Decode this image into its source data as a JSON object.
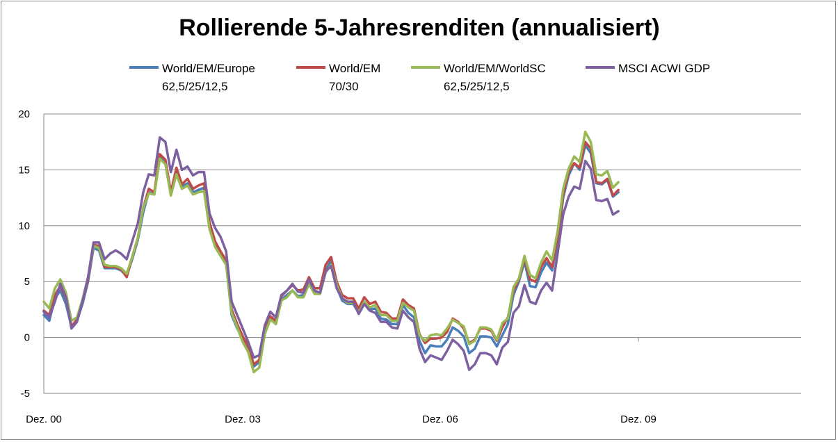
{
  "chart_data": {
    "type": "line",
    "title": "Rollierende 5-Jahresrenditen (annualisiert)",
    "xlabel": "",
    "ylabel": "",
    "ylim": [
      -5,
      20
    ],
    "yticks": [
      "-5",
      "0",
      "5",
      "10",
      "15",
      "20"
    ],
    "xticks": [
      "Dez. 00",
      "Dez. 03",
      "Dez. 06",
      "Dez. 09"
    ],
    "grid": "horizontal",
    "legend_position": "top",
    "x_start": "Dez. 00",
    "x_step": "monthly",
    "series": [
      {
        "name_lines": [
          "World/EM/Europe",
          "62,5/25/12,5"
        ],
        "color": "#4a7ebb",
        "values": [
          2.0,
          1.5,
          3.5,
          4.2,
          3.0,
          1.0,
          1.5,
          3.0,
          5.0,
          8.0,
          7.8,
          6.2,
          6.2,
          6.2,
          6.0,
          5.5,
          7.0,
          8.7,
          11.2,
          13.0,
          12.8,
          16.2,
          15.7,
          12.8,
          14.8,
          13.5,
          13.8,
          13.0,
          13.2,
          13.4,
          10.0,
          8.3,
          7.5,
          6.6,
          2.0,
          0.8,
          -0.1,
          -1.1,
          -2.6,
          -2.2,
          0.5,
          1.7,
          1.2,
          3.4,
          3.8,
          4.2,
          3.7,
          3.8,
          5.0,
          4.0,
          4.0,
          6.0,
          6.9,
          4.5,
          3.3,
          3.0,
          3.0,
          2.2,
          3.2,
          2.5,
          2.6,
          1.7,
          1.6,
          1.2,
          1.2,
          2.9,
          2.2,
          1.8,
          -0.3,
          -1.4,
          -0.7,
          -0.8,
          -0.8,
          -0.2,
          0.9,
          0.6,
          0.1,
          -1.4,
          -1.0,
          0.1,
          0.1,
          0.0,
          -0.8,
          0.2,
          1.2,
          3.8,
          5.0,
          6.8,
          4.6,
          4.5,
          5.8,
          6.7,
          6.0,
          8.5,
          12.5,
          14.5,
          15.6,
          15.0,
          17.2,
          16.5,
          13.8,
          13.7,
          14.1,
          12.6,
          13.0
        ]
      },
      {
        "name_lines": [
          "World/EM",
          "70/30"
        ],
        "color": "#be4b48",
        "values": [
          2.4,
          2.0,
          3.8,
          4.6,
          3.5,
          1.0,
          1.6,
          3.2,
          5.2,
          8.3,
          8.2,
          6.3,
          6.3,
          6.3,
          6.1,
          5.4,
          7.2,
          8.9,
          11.6,
          13.3,
          13.0,
          16.4,
          15.9,
          13.0,
          15.2,
          13.7,
          14.2,
          13.3,
          13.6,
          13.8,
          10.3,
          8.6,
          7.7,
          6.9,
          2.5,
          1.2,
          0.1,
          -0.8,
          -2.4,
          -2.0,
          0.8,
          1.9,
          1.5,
          3.7,
          4.2,
          4.7,
          4.2,
          4.3,
          5.4,
          4.4,
          4.4,
          6.5,
          7.2,
          5.0,
          3.8,
          3.5,
          3.5,
          2.6,
          3.6,
          3.0,
          3.2,
          2.3,
          2.2,
          1.7,
          1.7,
          3.4,
          2.9,
          2.6,
          0.3,
          -0.5,
          -0.1,
          -0.1,
          0.0,
          0.5,
          1.7,
          1.4,
          0.8,
          -0.5,
          -0.2,
          0.8,
          0.8,
          0.6,
          -0.3,
          0.9,
          1.8,
          4.2,
          5.2,
          7.1,
          5.2,
          5.0,
          6.3,
          7.1,
          6.3,
          9.0,
          12.8,
          14.8,
          15.6,
          15.2,
          17.5,
          16.9,
          13.9,
          13.8,
          14.2,
          12.7,
          13.2
        ]
      },
      {
        "name_lines": [
          "World/EM/WorldSC",
          "62,5/25/12,5"
        ],
        "color": "#98b954",
        "values": [
          3.2,
          2.6,
          4.4,
          5.2,
          4.0,
          1.5,
          1.8,
          3.4,
          5.4,
          8.2,
          8.0,
          6.5,
          6.4,
          6.4,
          6.2,
          5.7,
          7.2,
          8.9,
          11.6,
          12.9,
          12.8,
          16.0,
          15.5,
          12.7,
          14.6,
          13.3,
          13.6,
          12.8,
          13.0,
          13.1,
          9.7,
          8.1,
          7.3,
          6.5,
          2.2,
          0.9,
          -0.4,
          -1.3,
          -3.1,
          -2.7,
          0.3,
          1.6,
          1.2,
          3.3,
          3.6,
          4.2,
          3.6,
          3.6,
          4.8,
          3.9,
          3.9,
          5.8,
          6.5,
          4.7,
          3.5,
          3.1,
          3.1,
          2.2,
          3.2,
          2.7,
          2.9,
          2.0,
          2.0,
          1.5,
          1.5,
          3.1,
          2.7,
          2.4,
          0.2,
          -0.3,
          0.2,
          0.3,
          0.2,
          0.8,
          1.6,
          1.3,
          1.0,
          -0.6,
          -0.3,
          0.9,
          0.9,
          0.7,
          -0.2,
          1.3,
          1.7,
          4.5,
          5.3,
          7.3,
          5.6,
          5.3,
          6.7,
          7.7,
          6.9,
          9.5,
          13.3,
          15.1,
          16.2,
          15.7,
          18.4,
          17.5,
          14.6,
          14.5,
          14.9,
          13.4,
          13.9
        ]
      },
      {
        "name_lines": [
          "MSCI ACWI GDP"
        ],
        "color": "#7d60a0",
        "values": [
          2.3,
          1.8,
          3.2,
          4.8,
          3.6,
          0.8,
          1.4,
          3.2,
          5.4,
          8.5,
          8.5,
          7.0,
          7.5,
          7.8,
          7.5,
          7.0,
          8.6,
          10.2,
          13.0,
          14.6,
          14.5,
          17.9,
          17.5,
          14.8,
          16.8,
          15.0,
          15.3,
          14.5,
          14.8,
          14.8,
          11.1,
          9.8,
          9.0,
          7.7,
          3.2,
          2.0,
          0.8,
          -0.4,
          -1.8,
          -1.6,
          1.1,
          2.3,
          1.8,
          3.8,
          4.2,
          4.8,
          4.1,
          4.0,
          5.2,
          4.2,
          4.0,
          5.9,
          6.4,
          4.4,
          3.5,
          3.2,
          3.2,
          2.1,
          3.0,
          2.4,
          2.2,
          1.4,
          1.4,
          0.9,
          0.8,
          2.4,
          1.8,
          1.4,
          -1.0,
          -2.2,
          -1.6,
          -1.8,
          -2.0,
          -1.2,
          -0.2,
          -0.6,
          -1.2,
          -2.9,
          -2.4,
          -1.4,
          -1.4,
          -1.6,
          -2.4,
          -0.9,
          -0.4,
          2.2,
          2.8,
          4.7,
          3.2,
          3.0,
          4.2,
          4.9,
          4.2,
          7.5,
          11.0,
          12.6,
          13.5,
          13.3,
          15.8,
          15.1,
          12.3,
          12.2,
          12.4,
          11.0,
          11.3
        ]
      }
    ]
  }
}
